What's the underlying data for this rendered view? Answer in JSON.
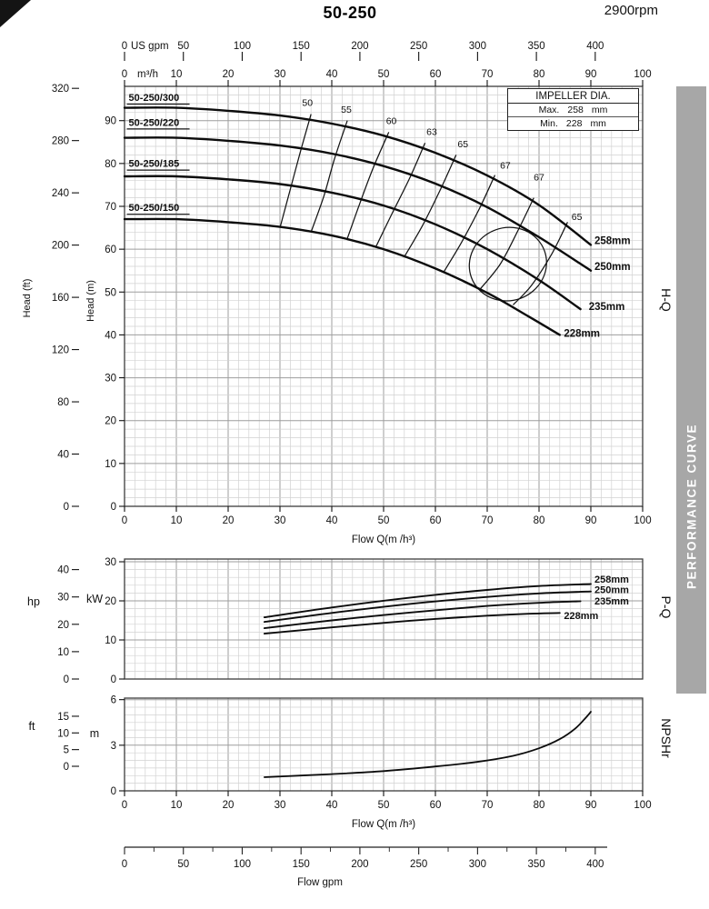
{
  "page": {
    "title": "50-250",
    "rpm": "2900rpm",
    "banner_text": "PERFORMANCE CURVE"
  },
  "impeller_box": {
    "title": "IMPELLER DIA.",
    "rows": [
      {
        "label": "Max.",
        "value": "258",
        "unit": "mm"
      },
      {
        "label": "Min.",
        "value": "228",
        "unit": "mm"
      }
    ]
  },
  "side_labels": {
    "hq": "H-Q",
    "pq": "P-Q",
    "npshr": "NPSHr"
  },
  "chart_data": [
    {
      "name": "head_flow",
      "type": "line",
      "title": "H-Q performance curve",
      "x_axis": {
        "m3h": {
          "unit": "m³/h",
          "ticks": [
            0,
            10,
            20,
            30,
            40,
            50,
            60,
            70,
            80,
            90,
            100
          ],
          "range": [
            0,
            100
          ]
        },
        "usgpm": {
          "unit": "US gpm",
          "ticks": [
            0,
            50,
            100,
            150,
            200,
            250,
            300,
            350,
            400
          ],
          "range": [
            0,
            440
          ]
        },
        "bottom_label": "Flow Q(m /h³)"
      },
      "y_axis": {
        "m": {
          "label": "Head (m)",
          "ticks": [
            0,
            10,
            20,
            30,
            40,
            50,
            60,
            70,
            80,
            90
          ],
          "range": [
            0,
            98
          ]
        },
        "ft": {
          "label": "Head (ft)",
          "ticks": [
            0,
            40,
            80,
            120,
            160,
            200,
            240,
            280,
            320
          ]
        }
      },
      "series": [
        {
          "name": "258mm",
          "model": "50-250/300",
          "points": [
            [
              0,
              93
            ],
            [
              10,
              93
            ],
            [
              20,
              92.3
            ],
            [
              30,
              91.2
            ],
            [
              40,
              89.3
            ],
            [
              50,
              86.5
            ],
            [
              60,
              82.5
            ],
            [
              70,
              77.2
            ],
            [
              80,
              70.3
            ],
            [
              90,
              61
            ]
          ],
          "label_pos": [
            90.7,
            61.2
          ],
          "model_pos": [
            0.8,
            94.6
          ]
        },
        {
          "name": "250mm",
          "model": "50-250/220",
          "points": [
            [
              0,
              86
            ],
            [
              10,
              86
            ],
            [
              20,
              85.3
            ],
            [
              30,
              84.2
            ],
            [
              40,
              82.3
            ],
            [
              50,
              79.4
            ],
            [
              60,
              75.3
            ],
            [
              70,
              69.8
            ],
            [
              80,
              62.8
            ],
            [
              90,
              55
            ]
          ],
          "label_pos": [
            90.7,
            55.2
          ],
          "model_pos": [
            0.8,
            88.8
          ]
        },
        {
          "name": "235mm",
          "model": "50-250/185",
          "points": [
            [
              0,
              77
            ],
            [
              10,
              77
            ],
            [
              20,
              76.3
            ],
            [
              30,
              75.2
            ],
            [
              40,
              73.2
            ],
            [
              50,
              70.2
            ],
            [
              60,
              65.8
            ],
            [
              70,
              60
            ],
            [
              80,
              52.8
            ],
            [
              88,
              46
            ]
          ],
          "label_pos": [
            89.6,
            45.8
          ],
          "model_pos": [
            0.8,
            79.2
          ]
        },
        {
          "name": "228mm",
          "model": "50-250/150",
          "points": [
            [
              0,
              67
            ],
            [
              10,
              67
            ],
            [
              20,
              66.3
            ],
            [
              30,
              65.2
            ],
            [
              40,
              63.2
            ],
            [
              50,
              60
            ],
            [
              60,
              55.5
            ],
            [
              70,
              49.8
            ],
            [
              78,
              44.3
            ],
            [
              84,
              40
            ]
          ],
          "label_pos": [
            84.8,
            39.6
          ],
          "model_pos": [
            0.8,
            68.9
          ]
        }
      ],
      "efficiency_lines": [
        {
          "label": "50",
          "points": [
            [
              36,
              91.5
            ],
            [
              34,
              83
            ],
            [
              32,
              74
            ],
            [
              30,
              65
            ]
          ],
          "label_pos": [
            35.3,
            93.4
          ]
        },
        {
          "label": "55",
          "points": [
            [
              43,
              90
            ],
            [
              40.5,
              81
            ],
            [
              38.5,
              72.5
            ],
            [
              36,
              64
            ]
          ],
          "label_pos": [
            42.8,
            91.8
          ]
        },
        {
          "label": "60",
          "points": [
            [
              51,
              87.3
            ],
            [
              48,
              79
            ],
            [
              45.5,
              71
            ],
            [
              43,
              62.5
            ]
          ],
          "label_pos": [
            51.5,
            89.2
          ]
        },
        {
          "label": "63",
          "points": [
            [
              58,
              84.8
            ],
            [
              55,
              76.5
            ],
            [
              51.5,
              68
            ],
            [
              48.5,
              60.5
            ]
          ],
          "label_pos": [
            59.3,
            86.6
          ]
        },
        {
          "label": "65",
          "points": [
            [
              64,
              82
            ],
            [
              61,
              74
            ],
            [
              57.5,
              65.5
            ],
            [
              54,
              58.2
            ]
          ],
          "label_pos": [
            65.3,
            83.8
          ]
        },
        {
          "label": "67",
          "points": [
            [
              71.5,
              77.3
            ],
            [
              68.5,
              69.5
            ],
            [
              65,
              61.5
            ],
            [
              61.5,
              54.5
            ]
          ],
          "label_pos": [
            73.5,
            78.8
          ]
        },
        {
          "label": "67",
          "points": [
            [
              79,
              72
            ],
            [
              76,
              64.5
            ],
            [
              72.5,
              56.5
            ],
            [
              68.5,
              50.5
            ]
          ],
          "label_pos": [
            80,
            76
          ]
        },
        {
          "label": "65",
          "points": [
            [
              85.5,
              66.3
            ],
            [
              82.5,
              59
            ],
            [
              78.5,
              51.5
            ],
            [
              75,
              47
            ]
          ],
          "label_pos": [
            87.3,
            66.8
          ]
        }
      ],
      "efficiency_loop": {
        "center": [
          74,
          56.5
        ],
        "rx": 7.5,
        "ry": 8.5,
        "rotate": -20
      }
    },
    {
      "name": "power_flow",
      "type": "line",
      "title": "P-Q power curve",
      "y_axis": {
        "kW": {
          "label": "kW",
          "ticks": [
            0,
            10,
            20,
            30
          ],
          "range": [
            0,
            30.7
          ]
        },
        "hp": {
          "label": "hp",
          "ticks": [
            0,
            10,
            20,
            30,
            40
          ]
        }
      },
      "series": [
        {
          "name": "258mm",
          "points": [
            [
              27,
              15.8
            ],
            [
              40,
              18.3
            ],
            [
              55,
              20.8
            ],
            [
              70,
              22.8
            ],
            [
              80,
              23.8
            ],
            [
              90,
              24.3
            ]
          ],
          "label_pos": [
            90.7,
            24.6
          ]
        },
        {
          "name": "250mm",
          "points": [
            [
              27,
              14.6
            ],
            [
              40,
              16.9
            ],
            [
              55,
              19.2
            ],
            [
              70,
              21.0
            ],
            [
              80,
              21.9
            ],
            [
              90,
              22.4
            ]
          ],
          "label_pos": [
            90.7,
            22.0
          ]
        },
        {
          "name": "235mm",
          "points": [
            [
              27,
              13.0
            ],
            [
              40,
              15.0
            ],
            [
              55,
              17.0
            ],
            [
              70,
              18.7
            ],
            [
              80,
              19.5
            ],
            [
              88,
              19.9
            ]
          ],
          "label_pos": [
            90.7,
            19.1
          ]
        },
        {
          "name": "228mm",
          "points": [
            [
              27,
              11.6
            ],
            [
              40,
              13.2
            ],
            [
              55,
              14.9
            ],
            [
              70,
              16.2
            ],
            [
              78,
              16.7
            ],
            [
              84,
              16.9
            ]
          ],
          "label_pos": [
            84.8,
            15.3
          ]
        }
      ]
    },
    {
      "name": "npshr_flow",
      "type": "line",
      "title": "NPSHr curve",
      "x_axis": {
        "m3h": {
          "ticks": [
            0,
            10,
            20,
            30,
            40,
            50,
            60,
            70,
            80,
            90,
            100
          ],
          "range": [
            0,
            100
          ]
        },
        "bottom_label": "Flow Q(m /h³)"
      },
      "y_axis": {
        "m": {
          "label": "m",
          "ticks": [
            0,
            3,
            6
          ],
          "range": [
            0,
            6.1
          ]
        },
        "ft": {
          "label": "ft",
          "ticks": [
            0,
            5,
            10,
            15
          ]
        }
      },
      "series": [
        {
          "name": "NPSHr",
          "points": [
            [
              27,
              0.9
            ],
            [
              40,
              1.1
            ],
            [
              50,
              1.3
            ],
            [
              60,
              1.6
            ],
            [
              68,
              1.9
            ],
            [
              75,
              2.3
            ],
            [
              80,
              2.8
            ],
            [
              84,
              3.4
            ],
            [
              87,
              4.1
            ],
            [
              89,
              4.8
            ],
            [
              90,
              5.2
            ]
          ]
        }
      ]
    }
  ],
  "bottom_axis": {
    "label": "Flow gpm",
    "ticks": [
      0,
      50,
      100,
      150,
      200,
      250,
      300,
      350,
      400
    ]
  }
}
